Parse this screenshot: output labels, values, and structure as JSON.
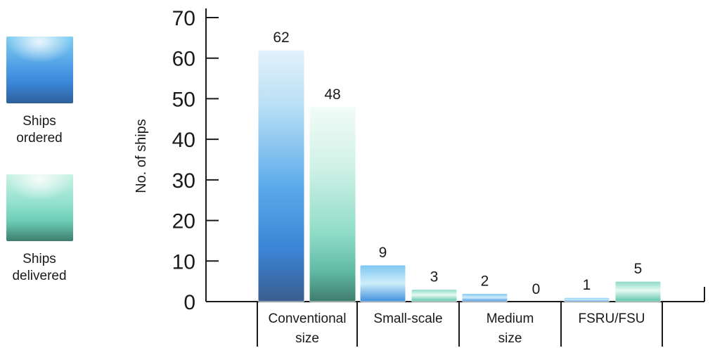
{
  "legend": {
    "ordered": "Ships ordered",
    "delivered": "Ships delivered"
  },
  "colors": {
    "ordered": "#4a9be6",
    "delivered": "#7dd9c2"
  },
  "chart_data": {
    "type": "bar",
    "ylabel": "No. of ships",
    "ylim": [
      0,
      70
    ],
    "yticks": [
      0,
      10,
      20,
      30,
      40,
      50,
      60,
      70
    ],
    "categories": [
      [
        "Conventional",
        "size"
      ],
      [
        "Small-scale"
      ],
      [
        "Medium",
        "size"
      ],
      [
        "FSRU/FSU"
      ]
    ],
    "series": [
      {
        "name": "Ships ordered",
        "values": [
          62,
          9,
          2,
          1
        ]
      },
      {
        "name": "Ships delivered",
        "values": [
          48,
          3,
          0,
          5
        ]
      }
    ],
    "data_labels": true,
    "legend_position": "left"
  }
}
